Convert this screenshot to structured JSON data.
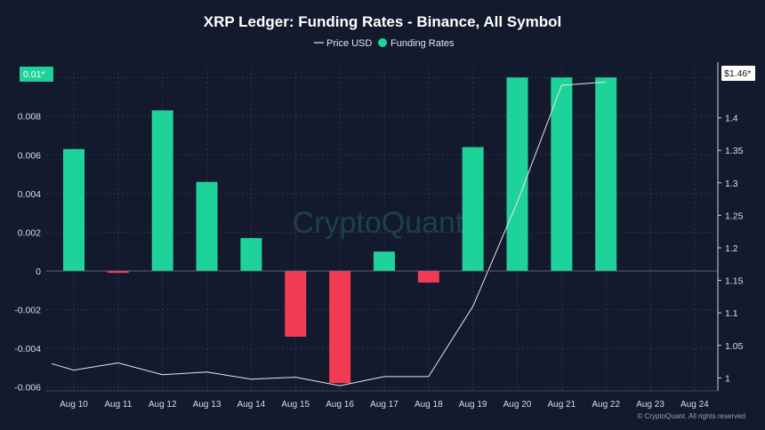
{
  "chart_data": {
    "type": "bar",
    "title": "XRP Ledger: Funding Rates - Binance, All Symbol",
    "categories": [
      "Aug 10",
      "Aug 11",
      "Aug 12",
      "Aug 13",
      "Aug 14",
      "Aug 15",
      "Aug 16",
      "Aug 17",
      "Aug 18",
      "Aug 19",
      "Aug 20",
      "Aug 21",
      "Aug 22",
      "Aug 23",
      "Aug 24"
    ],
    "series": [
      {
        "name": "Funding Rates",
        "type": "bar",
        "axis": "left",
        "values": [
          0.0063,
          -0.0001,
          0.0083,
          0.0046,
          0.0017,
          -0.0034,
          -0.0058,
          0.001,
          -0.0006,
          0.0064,
          0.01,
          0.01,
          0.01,
          null,
          null
        ]
      },
      {
        "name": "Price USD",
        "type": "line",
        "axis": "right",
        "x": [
          "Aug 9.8",
          "Aug 10",
          "Aug 11",
          "Aug 12",
          "Aug 13",
          "Aug 14",
          "Aug 15",
          "Aug 16",
          "Aug 17",
          "Aug 18",
          "Aug 19",
          "Aug 20",
          "Aug 21",
          "Aug 22"
        ],
        "values": [
          1.022,
          1.012,
          1.023,
          1.005,
          1.009,
          0.998,
          1.001,
          0.988,
          1.002,
          1.002,
          1.11,
          1.27,
          1.45,
          1.455
        ]
      }
    ],
    "left_axis": {
      "ylim": [
        -0.0062,
        0.0101
      ],
      "ticks": [
        "0.008",
        "0.006",
        "0.004",
        "0.002",
        "0",
        "-0.002",
        "-0.004",
        "-0.006"
      ]
    },
    "right_axis": {
      "ylim": [
        0.98,
        1.465
      ],
      "ticks": [
        "1.4",
        "1.35",
        "1.3",
        "1.25",
        "1.2",
        "1.15",
        "1.1",
        "1.05",
        "1"
      ]
    },
    "left_badge": "0.01*",
    "right_badge": "$1.46*",
    "legend_position": "top-center",
    "grid": true,
    "watermark": "CryptoQuant",
    "credit": "© CryptoQuant. All rights reserved",
    "colors": {
      "background": "#141a2e",
      "positive": "#1ed39a",
      "negative": "#f23b52",
      "line": "#e6e6e6",
      "grid": "#2c3450"
    }
  }
}
